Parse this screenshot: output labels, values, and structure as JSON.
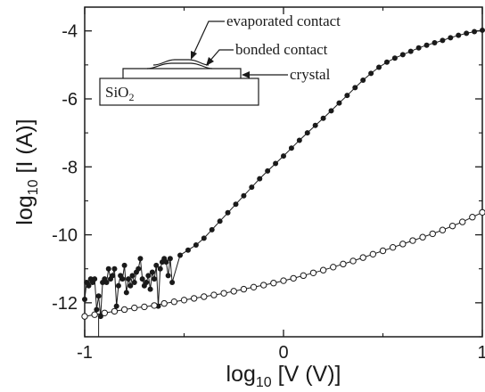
{
  "chart_data": {
    "type": "scatter",
    "title": "",
    "xlabel": {
      "base": "log",
      "sub": "10",
      "rest": " [V (V)]"
    },
    "ylabel": {
      "base": "log",
      "sub": "10",
      "rest": " [I (A)]"
    },
    "xlim": [
      -1,
      1
    ],
    "ylim": [
      -13,
      -3.3
    ],
    "xticks": [
      -1,
      0,
      1
    ],
    "yticks": [
      -12,
      -10,
      -8,
      -6,
      -4
    ],
    "xtick_labels": [
      "-1",
      "0",
      "1"
    ],
    "ytick_labels": [
      "-12",
      "-10",
      "-8",
      "-6",
      "-4"
    ],
    "grid": false,
    "series": [
      {
        "marker": "filled-circle",
        "color": "#1a1a1a",
        "connected": true,
        "noisy_region": {
          "x": [
            -1.0,
            -0.99,
            -0.98,
            -0.97,
            -0.96,
            -0.95,
            -0.94,
            -0.93,
            -0.92,
            -0.91,
            -0.9,
            -0.89,
            -0.88,
            -0.87,
            -0.86,
            -0.85,
            -0.84,
            -0.83,
            -0.82,
            -0.81,
            -0.8,
            -0.79,
            -0.78,
            -0.77,
            -0.76,
            -0.75,
            -0.74,
            -0.73,
            -0.72,
            -0.71,
            -0.7,
            -0.69,
            -0.68,
            -0.67,
            -0.66,
            -0.65,
            -0.64,
            -0.63,
            -0.62,
            -0.61,
            -0.6,
            -0.59,
            -0.58,
            -0.57,
            -0.56
          ],
          "y": [
            -11.9,
            -11.4,
            -11.5,
            -11.3,
            -11.4,
            -11.3,
            -12.2,
            -11.8,
            -12.4,
            -11.4,
            -11.3,
            -11.4,
            -11.0,
            -11.3,
            -11.2,
            -11.0,
            -12.1,
            -11.5,
            -11.2,
            -11.3,
            -10.9,
            -11.7,
            -11.3,
            -11.5,
            -11.2,
            -11.4,
            -11.1,
            -11.0,
            -10.7,
            -11.3,
            -11.5,
            -11.4,
            -11.2,
            -11.6,
            -11.1,
            -11.3,
            -10.9,
            -12.1,
            -11.0,
            -10.8,
            -10.7,
            -10.8,
            -11.2,
            -10.7,
            -11.4
          ]
        },
        "smooth_region": {
          "x": [
            -0.56,
            -0.52,
            -0.48,
            -0.44,
            -0.4,
            -0.36,
            -0.32,
            -0.28,
            -0.24,
            -0.2,
            -0.16,
            -0.12,
            -0.08,
            -0.04,
            0.0,
            0.04,
            0.08,
            0.12,
            0.16,
            0.2,
            0.24,
            0.28,
            0.32,
            0.36,
            0.4,
            0.44,
            0.48,
            0.52,
            0.56,
            0.6,
            0.64,
            0.68,
            0.72,
            0.76,
            0.8,
            0.84,
            0.88,
            0.92,
            0.96,
            1.0
          ],
          "y": [
            -10.8,
            -10.6,
            -10.45,
            -10.3,
            -10.1,
            -9.85,
            -9.6,
            -9.35,
            -9.1,
            -8.85,
            -8.6,
            -8.35,
            -8.12,
            -7.9,
            -7.68,
            -7.45,
            -7.22,
            -7.0,
            -6.78,
            -6.57,
            -6.35,
            -6.12,
            -5.9,
            -5.67,
            -5.45,
            -5.25,
            -5.07,
            -4.92,
            -4.8,
            -4.7,
            -4.6,
            -4.5,
            -4.42,
            -4.35,
            -4.28,
            -4.2,
            -4.13,
            -4.07,
            -4.02,
            -3.98
          ]
        },
        "dropout": {
          "x": -0.93,
          "y_from": -12.4,
          "y_to": -13.0
        }
      },
      {
        "marker": "open-circle",
        "color": "#1a1a1a",
        "connected": true,
        "x": [
          -1.0,
          -0.95,
          -0.9,
          -0.85,
          -0.8,
          -0.75,
          -0.7,
          -0.65,
          -0.6,
          -0.55,
          -0.5,
          -0.45,
          -0.4,
          -0.35,
          -0.3,
          -0.25,
          -0.2,
          -0.15,
          -0.1,
          -0.05,
          0.0,
          0.05,
          0.1,
          0.15,
          0.2,
          0.25,
          0.3,
          0.35,
          0.4,
          0.45,
          0.5,
          0.55,
          0.6,
          0.65,
          0.7,
          0.75,
          0.8,
          0.85,
          0.9,
          0.95,
          1.0
        ],
        "y": [
          -12.4,
          -12.35,
          -12.3,
          -12.25,
          -12.2,
          -12.15,
          -12.12,
          -12.08,
          -12.02,
          -11.97,
          -11.92,
          -11.87,
          -11.82,
          -11.77,
          -11.72,
          -11.66,
          -11.6,
          -11.54,
          -11.48,
          -11.42,
          -11.35,
          -11.28,
          -11.2,
          -11.12,
          -11.04,
          -10.95,
          -10.86,
          -10.77,
          -10.67,
          -10.57,
          -10.47,
          -10.37,
          -10.27,
          -10.17,
          -10.07,
          -9.97,
          -9.86,
          -9.74,
          -9.62,
          -9.48,
          -9.34
        ]
      }
    ],
    "inset": {
      "labels": {
        "evaporated": "evaporated contact",
        "bonded": "bonded contact",
        "crystal": "crystal",
        "substrate": {
          "base": "SiO",
          "sub": "2"
        }
      }
    }
  }
}
